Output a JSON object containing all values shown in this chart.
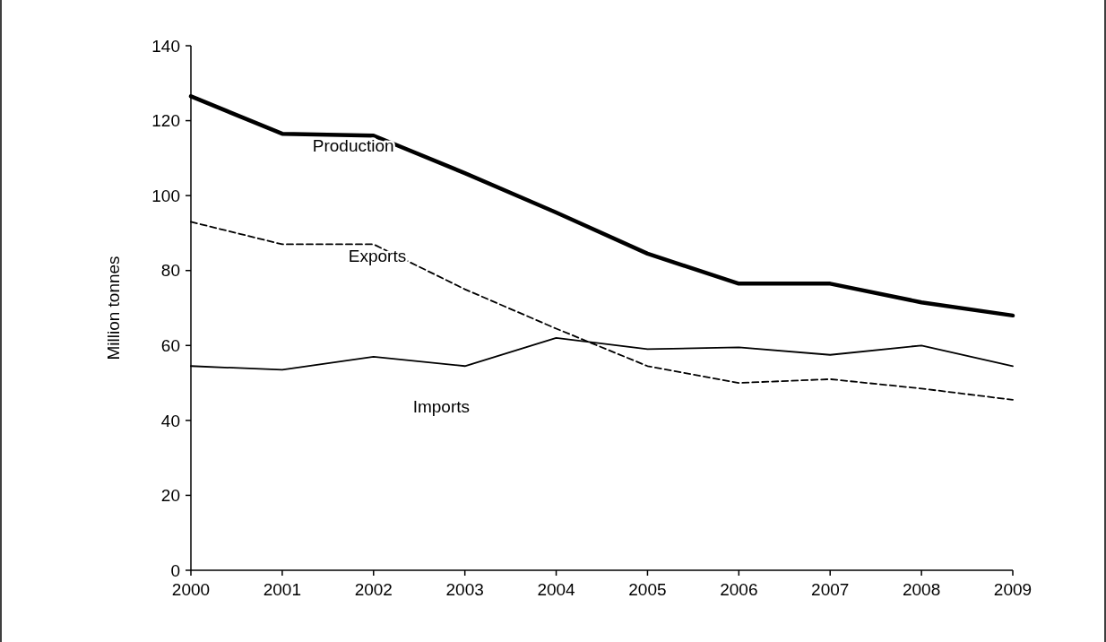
{
  "chart_data": {
    "type": "line",
    "ylabel": "Million tonnes",
    "x": [
      2000,
      2001,
      2002,
      2003,
      2004,
      2005,
      2006,
      2007,
      2008,
      2009
    ],
    "xlim": [
      2000,
      2009
    ],
    "xticks": [
      2000,
      2001,
      2002,
      2003,
      2004,
      2005,
      2006,
      2007,
      2008,
      2009
    ],
    "ylim": [
      0,
      140
    ],
    "yticks": [
      0,
      20,
      40,
      60,
      80,
      100,
      120,
      140
    ],
    "grid": false,
    "marker": "none",
    "series": [
      {
        "name": "Production",
        "color": "#000000",
        "line_style": "solid",
        "values": [
          126.5,
          116.5,
          116,
          106,
          95.5,
          84.5,
          76.5,
          76.5,
          71.5,
          68
        ]
      },
      {
        "name": "Exports",
        "color": "#000000",
        "line_style": "dashed",
        "values": [
          93,
          87,
          87,
          75,
          64.5,
          54.5,
          50,
          51,
          48.5,
          45.5
        ]
      },
      {
        "name": "Imports",
        "color": "#000000",
        "line_style": "solid",
        "values": [
          54.5,
          53.5,
          57,
          54.5,
          62,
          59,
          59.5,
          57.5,
          60,
          54.5
        ]
      }
    ]
  }
}
